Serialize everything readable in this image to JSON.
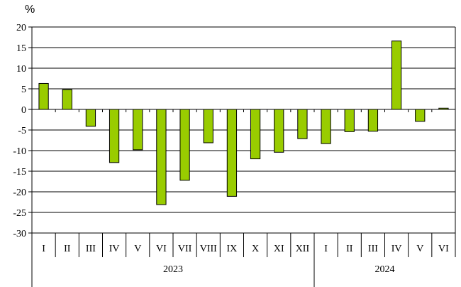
{
  "chart_data": {
    "type": "bar",
    "unit_label": "%",
    "categories": [
      "I",
      "II",
      "III",
      "IV",
      "V",
      "VI",
      "VII",
      "VIII",
      "IX",
      "X",
      "XI",
      "XII",
      "I",
      "II",
      "III",
      "IV",
      "V",
      "VI"
    ],
    "groups": [
      {
        "label": "2023",
        "count": 12
      },
      {
        "label": "2024",
        "count": 6
      }
    ],
    "values": [
      6.3,
      4.8,
      -4.1,
      -12.9,
      -9.8,
      -23.1,
      -17.2,
      -8.1,
      -21.1,
      -12.0,
      -10.4,
      -7.1,
      -8.3,
      -5.4,
      -5.3,
      16.6,
      -2.9,
      0.3
    ],
    "ylim": [
      -30,
      20
    ],
    "yticks": [
      20,
      15,
      10,
      5,
      0,
      -5,
      -10,
      -15,
      -20,
      -25,
      -30
    ],
    "grid": true,
    "bar_color": "#99cc00",
    "bar_edge_color": "#000000"
  }
}
